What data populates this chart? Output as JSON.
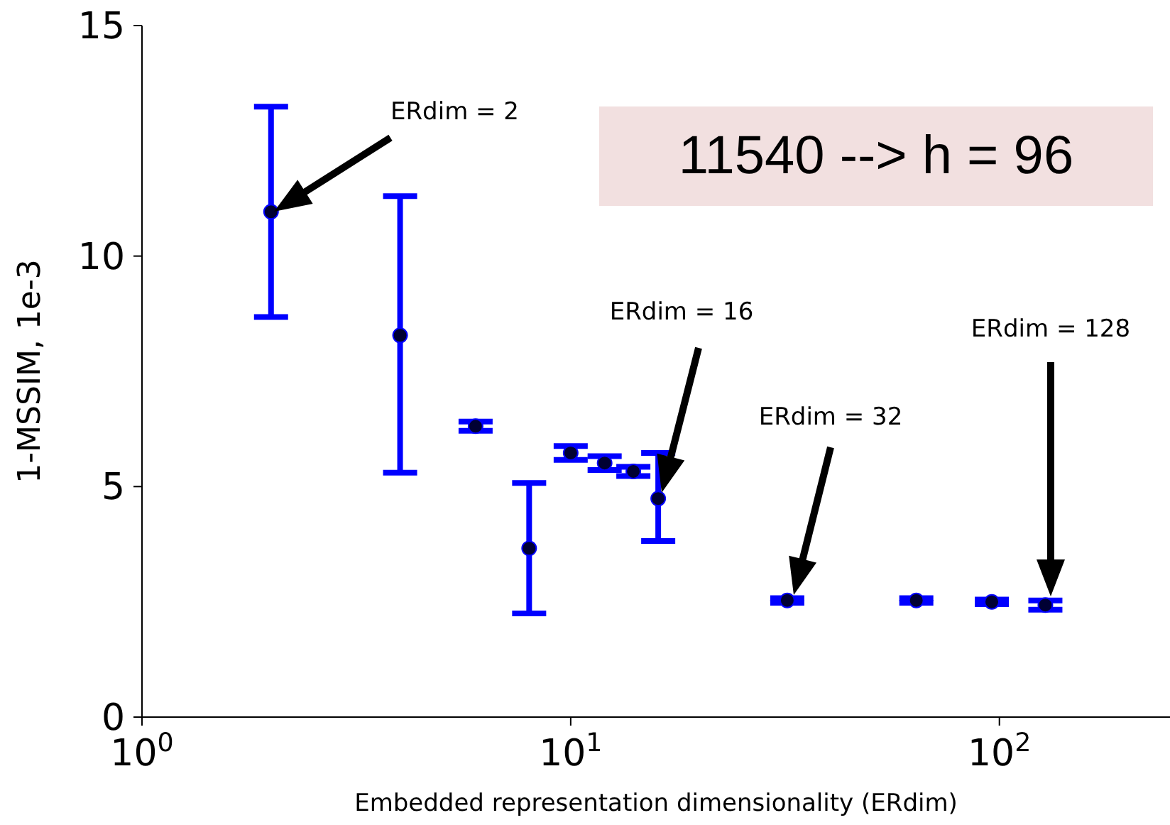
{
  "chart_data": {
    "type": "scatter",
    "xlabel": "Embedded representation dimensionality (ERdim)",
    "ylabel": "1-MSSIM, 1e-3",
    "log": "x",
    "marker": "circle",
    "xlim": [
      1,
      250
    ],
    "xticks": [
      {
        "value": 1,
        "label": "10$^{0}$"
      },
      {
        "value": 10,
        "label": "10$^{1}$"
      },
      {
        "value": 100,
        "label": "10$^{2}$"
      }
    ],
    "ylim": [
      0,
      15
    ],
    "yticks": [
      0,
      5,
      10,
      15
    ],
    "series": [
      {
        "color": "#0000ff",
        "x": [
          2,
          4,
          6,
          8,
          10,
          12,
          14,
          16,
          32,
          64,
          96,
          128
        ],
        "values": [
          10.96,
          8.28,
          6.31,
          3.66,
          5.73,
          5.51,
          5.33,
          4.74,
          2.53,
          2.53,
          2.5,
          2.43
        ],
        "errors": [
          [
            8.68,
            13.24
          ],
          [
            5.3,
            11.3
          ],
          [
            6.21,
            6.41
          ],
          [
            2.25,
            5.08
          ],
          [
            5.58,
            5.88
          ],
          [
            5.36,
            5.66
          ],
          [
            5.23,
            5.43
          ],
          [
            3.82,
            5.73
          ],
          [
            2.48,
            2.58
          ],
          [
            2.48,
            2.58
          ],
          [
            2.45,
            2.55
          ],
          [
            2.33,
            2.53
          ]
        ]
      }
    ],
    "annotations": [
      "ERdim = 2",
      "ERdim = 16",
      "ERdim = 32",
      "ERdim = 128",
      "11540  -->  h = 96"
    ]
  }
}
